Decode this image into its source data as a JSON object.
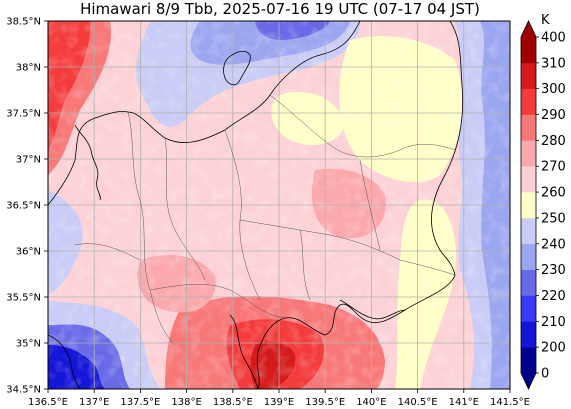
{
  "title": "Himawari 8/9 Tbb, 2025-07-16 19 UTC (07-17 04 JST)",
  "map": {
    "lon_range": [
      136.5,
      141.5
    ],
    "lat_range": [
      34.5,
      38.5
    ],
    "lon_ticks": [
      "136.5°E",
      "137°E",
      "137.5°E",
      "138°E",
      "138.5°E",
      "139°E",
      "139.5°E",
      "140°E",
      "140.5°E",
      "141°E",
      "141.5°E"
    ],
    "lat_ticks": [
      "34.5°N",
      "35°N",
      "35.5°N",
      "36°N",
      "36.5°N",
      "37°N",
      "37.5°N",
      "38°N",
      "38.5°N"
    ],
    "grid": true
  },
  "colorbar": {
    "unit": "K",
    "levels": [
      "0",
      "200",
      "210",
      "220",
      "230",
      "240",
      "250",
      "260",
      "270",
      "280",
      "290",
      "300",
      "310",
      "400"
    ],
    "colors": [
      "#00008f",
      "#1515d8",
      "#3a3af5",
      "#6a6ae8",
      "#9ba6f0",
      "#c8ccf6",
      "#ffffc8",
      "#fcd2d6",
      "#fba8ac",
      "#f87878",
      "#f43c3c",
      "#d41a1a",
      "#a00000"
    ]
  }
}
